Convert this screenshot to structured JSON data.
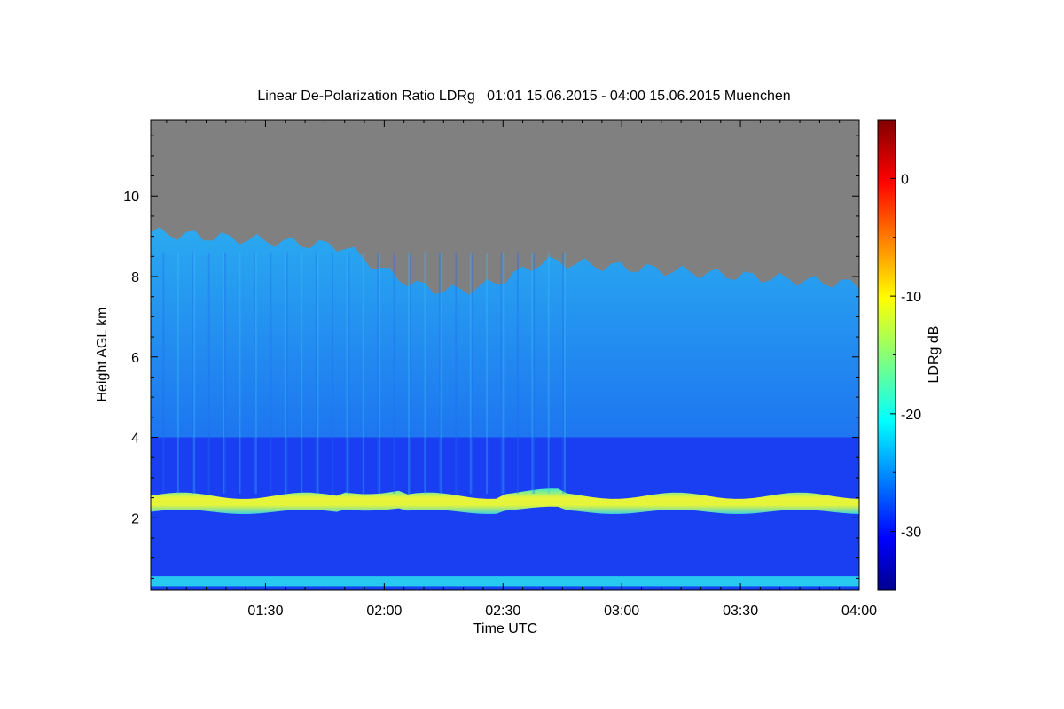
{
  "chart_data": {
    "type": "heatmap",
    "title": "Linear De-Polarization Ratio LDRg   01:01 15.06.2015 - 04:00 15.06.2015 Muenchen",
    "xlabel": "Time UTC",
    "ylabel": "Height AGL km",
    "colorbar_label": "LDRg dB",
    "x_range": [
      "01:01",
      "04:00"
    ],
    "xlim_minutes": [
      61,
      240
    ],
    "ylim": [
      0.2,
      11.9
    ],
    "clim": [
      -35,
      5
    ],
    "x_ticks": [
      {
        "minutes": 90,
        "label": "01:30"
      },
      {
        "minutes": 120,
        "label": "02:00"
      },
      {
        "minutes": 150,
        "label": "02:30"
      },
      {
        "minutes": 180,
        "label": "03:00"
      },
      {
        "minutes": 210,
        "label": "03:30"
      },
      {
        "minutes": 240,
        "label": "04:00"
      }
    ],
    "y_ticks": [
      {
        "value": 2,
        "label": "2"
      },
      {
        "value": 4,
        "label": "4"
      },
      {
        "value": 6,
        "label": "6"
      },
      {
        "value": 8,
        "label": "8"
      },
      {
        "value": 10,
        "label": "10"
      }
    ],
    "colorbar_ticks": [
      {
        "value": 0,
        "label": "0"
      },
      {
        "value": -10,
        "label": "-10"
      },
      {
        "value": -20,
        "label": "-20"
      },
      {
        "value": -30,
        "label": "-30"
      }
    ],
    "colormap": "jet",
    "no_signal_color": "#808080",
    "layers": {
      "boundary_layer_band_km": [
        2.15,
        2.55
      ],
      "boundary_layer_ldr_db": -13,
      "surface_band_km": [
        0.3,
        0.55
      ],
      "surface_ldr_db": -22,
      "below_band_ldr_db": -30,
      "above_band_ldr_db": -25,
      "cloud_top_km_start": 9.1,
      "cloud_top_km_end": 7.8
    }
  }
}
